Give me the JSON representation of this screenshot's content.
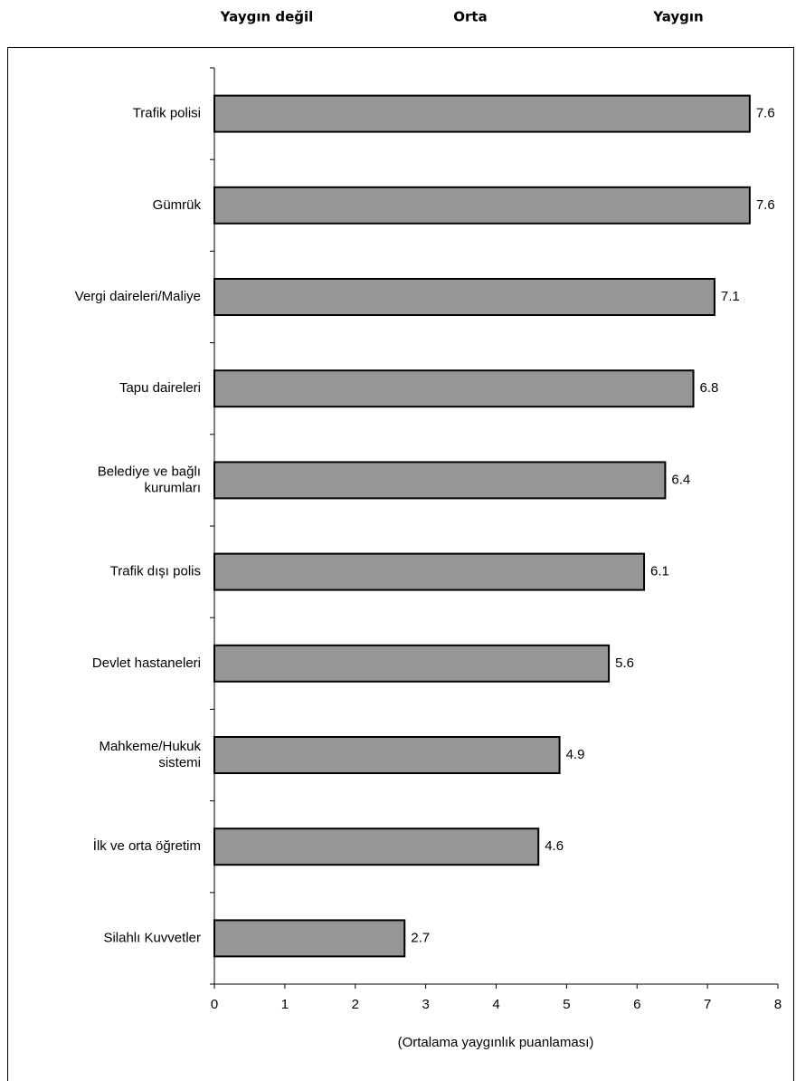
{
  "chart_data": {
    "type": "barh",
    "header_labels": [
      "Yaygın değil",
      "Orta",
      "Yaygın"
    ],
    "categories": [
      "Trafik polisi",
      "Gümrük",
      "Vergi daireleri/Maliye",
      "Tapu daireleri",
      "Belediye ve bağlı\nkurumları",
      "Trafik dışı polis",
      "Devlet hastaneleri",
      "Mahkeme/Hukuk\nsistemi",
      "İlk ve orta öğretim",
      "Silahlı Kuvvetler"
    ],
    "values": [
      7.6,
      7.6,
      7.1,
      6.8,
      6.4,
      6.1,
      5.6,
      4.9,
      4.6,
      2.7
    ],
    "color": "#969696",
    "xlim": [
      0,
      8
    ],
    "xticks": [
      0,
      1,
      2,
      3,
      4,
      5,
      6,
      7,
      8
    ],
    "x_label": "(Ortalama yaygınlık puanlaması)"
  }
}
